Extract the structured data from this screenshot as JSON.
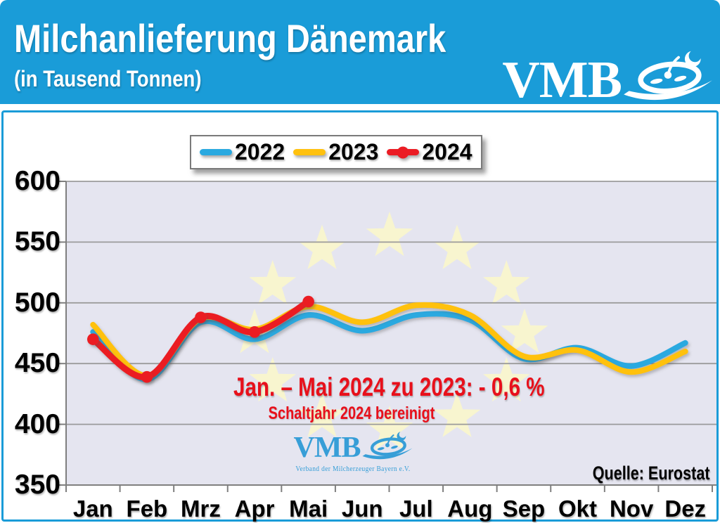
{
  "header": {
    "title": "Milchanlieferung Dänemark",
    "subtitle": "(in Tausend Tonnen)",
    "brand": {
      "text": "VMB"
    }
  },
  "legend": {
    "items": [
      {
        "label": "2022",
        "color": "#29A9E0",
        "marker": false
      },
      {
        "label": "2023",
        "color": "#FFC10E",
        "marker": false
      },
      {
        "label": "2024",
        "color": "#EB1C24",
        "marker": true
      }
    ]
  },
  "chart_data": {
    "type": "line",
    "title": "Milchanlieferung Dänemark (in Tausend Tonnen)",
    "categories": [
      "Jan",
      "Feb",
      "Mrz",
      "Apr",
      "Mai",
      "Jun",
      "Jul",
      "Aug",
      "Sep",
      "Okt",
      "Nov",
      "Dez"
    ],
    "series": [
      {
        "name": "2022",
        "color": "#29A9E0",
        "point_markers": false,
        "values": [
          476,
          437,
          484,
          470,
          490,
          477,
          490,
          486,
          454,
          463,
          448,
          467
        ]
      },
      {
        "name": "2023",
        "color": "#FFC10E",
        "point_markers": false,
        "values": [
          482,
          440,
          487,
          478,
          497,
          484,
          498,
          490,
          456,
          461,
          443,
          460
        ]
      },
      {
        "name": "2024",
        "color": "#EB1C24",
        "point_markers": true,
        "values": [
          470,
          439,
          488,
          476,
          501
        ]
      }
    ],
    "ylim": [
      350,
      600
    ],
    "yticks": [
      600,
      550,
      500,
      450,
      400,
      350
    ],
    "grid": true,
    "legend_position": "top",
    "plot_background": "#E5E5F0",
    "background_motif": "eu-stars-ring",
    "star_color": "#F8F5CF"
  },
  "annotation": {
    "line1": "Jan. – Mai 2024 zu 2023: - 0,6 %",
    "line2": "Schaltjahr 2024 bereinigt",
    "color": "#E8101B"
  },
  "source": {
    "label": "Quelle: Eurostat"
  },
  "watermark": {
    "text": "VMB",
    "caption": "Verband der Milcherzeuger Bayern e.V."
  },
  "colors": {
    "brand_blue": "#1A9CD8",
    "grid": "#9B9B9B",
    "axis": "#7F7F7F"
  }
}
